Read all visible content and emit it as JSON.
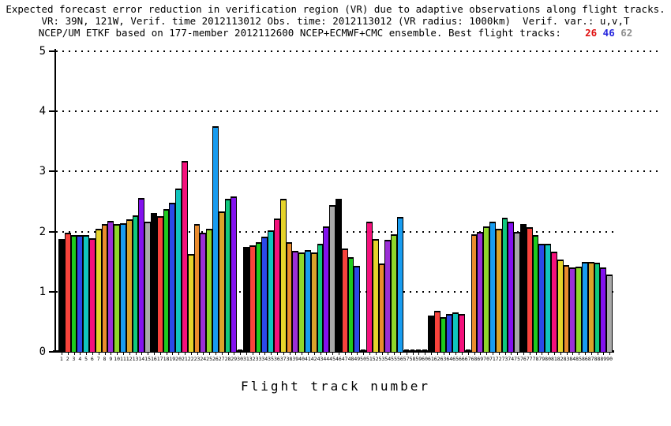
{
  "title": {
    "line1": "Expected forecast error reduction in verification region (VR) due to adaptive observations along flight tracks.",
    "line2": "VR: 39N, 121W, Verif. time 2012113012 Obs. time: 2012113012 (VR radius: 1000km)  Verif. var.: u,v,T",
    "line3": "NCEP/UM ETKF based on 177-member 2012112600 NCEP+ECMWF+CMC ensemble. Best flight tracks:",
    "best_tracks": [
      {
        "label": "26",
        "color": "#e01010"
      },
      {
        "label": "46",
        "color": "#2424dd"
      },
      {
        "label": "62",
        "color": "#909090"
      }
    ]
  },
  "chart_data": {
    "type": "bar",
    "xlabel": "Flight track number",
    "ylabel": "",
    "ylim": [
      0,
      5
    ],
    "y_ticks": [
      "0",
      "1",
      "2",
      "3",
      "4",
      "5"
    ],
    "grid": "dotted horizontal at 1,2,3,4,5",
    "legend": "none",
    "bar_color_cycle": [
      "#000000",
      "#f8433c",
      "#1ecb1e",
      "#2b49e8",
      "#10c5be",
      "#f4117c",
      "#e5d32b",
      "#ea8c2d",
      "#9b2fd6",
      "#8fd62a",
      "#189cf0",
      "#d9a32b",
      "#10c97d",
      "#8312ee",
      "#a9a9a9"
    ],
    "note": "bar n uses cycle[(n-1) mod 15]; null = missing track (tiny stub at axis)",
    "categories": [
      1,
      2,
      3,
      4,
      5,
      6,
      7,
      8,
      9,
      10,
      11,
      12,
      13,
      14,
      15,
      16,
      17,
      18,
      19,
      20,
      21,
      22,
      23,
      24,
      25,
      26,
      27,
      28,
      29,
      30,
      31,
      32,
      33,
      34,
      35,
      36,
      37,
      38,
      39,
      40,
      41,
      42,
      43,
      44,
      45,
      46,
      47,
      48,
      49,
      50,
      51,
      52,
      53,
      54,
      55,
      56,
      57,
      58,
      59,
      60,
      61,
      62,
      63,
      64,
      65,
      66,
      67,
      68,
      69,
      70,
      71,
      72,
      73,
      74,
      75,
      76,
      77,
      78,
      79,
      80,
      81,
      82,
      83,
      84,
      85,
      86,
      87,
      88,
      89,
      90
    ],
    "values": [
      1.88,
      1.98,
      1.94,
      1.94,
      1.94,
      1.89,
      2.05,
      2.13,
      2.18,
      2.13,
      2.14,
      2.21,
      2.27,
      2.56,
      2.16,
      2.31,
      2.26,
      2.38,
      2.48,
      2.71,
      3.18,
      1.63,
      2.13,
      1.98,
      2.05,
      3.75,
      2.33,
      2.55,
      2.58,
      null,
      1.75,
      1.77,
      1.82,
      1.92,
      2.02,
      2.22,
      2.54,
      1.83,
      1.68,
      1.66,
      1.69,
      1.66,
      1.8,
      2.09,
      2.44,
      2.55,
      1.72,
      1.57,
      1.43,
      null,
      2.17,
      1.88,
      1.47,
      1.87,
      1.95,
      2.24,
      null,
      null,
      null,
      null,
      0.6,
      0.68,
      0.58,
      0.63,
      0.66,
      0.63,
      null,
      1.95,
      2.0,
      2.09,
      2.17,
      2.05,
      2.23,
      2.17,
      2.0,
      2.13,
      2.08,
      1.94,
      1.8,
      1.8,
      1.67,
      1.53,
      1.44,
      1.4,
      1.42,
      1.5,
      1.5,
      1.48,
      1.4,
      1.28
    ]
  }
}
